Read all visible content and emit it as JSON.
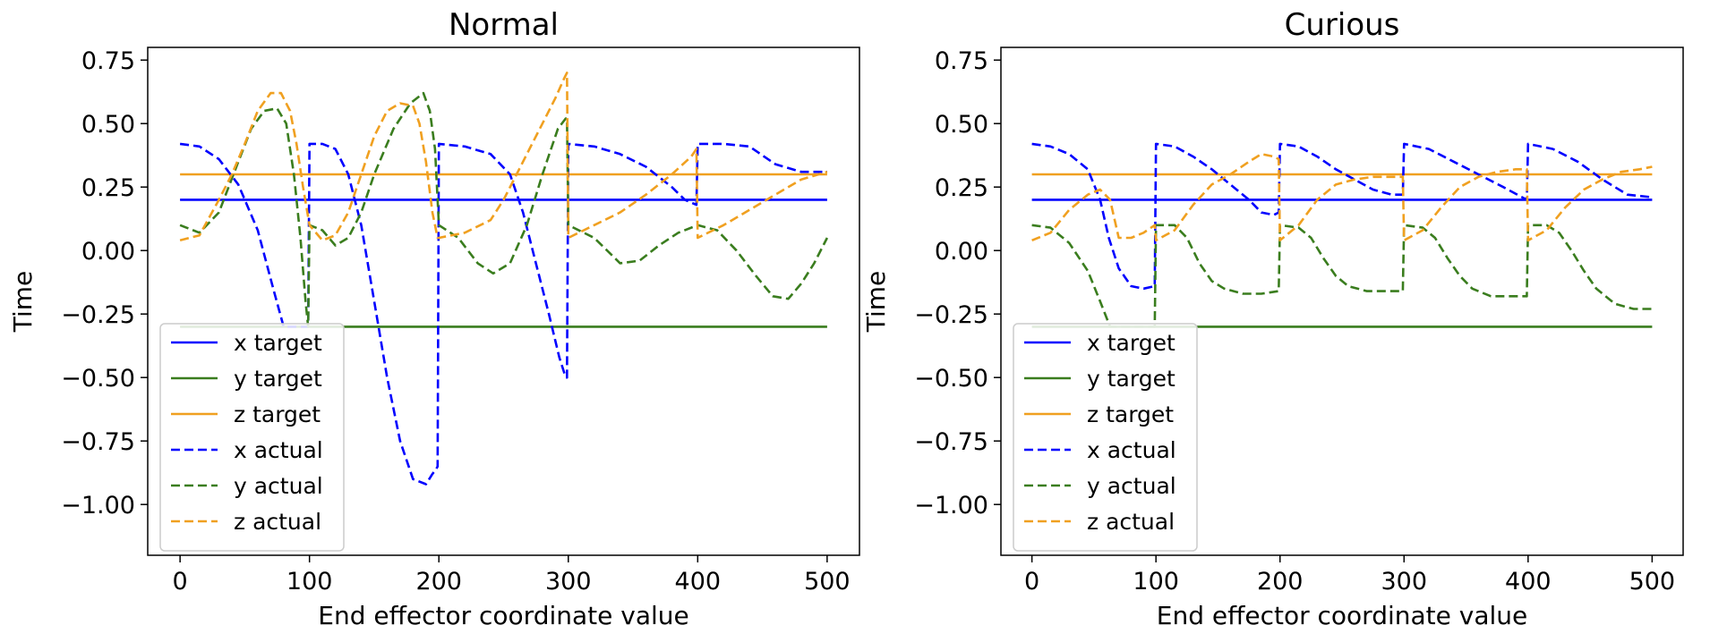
{
  "chart_data": [
    {
      "type": "line",
      "title": "Normal",
      "xlabel": "End effector coordinate value",
      "ylabel": "Time",
      "xlim": [
        -25,
        525
      ],
      "ylim": [
        -1.2,
        0.8
      ],
      "xticks": [
        0,
        100,
        200,
        300,
        400,
        500
      ],
      "xtick_labels": [
        "0",
        "100",
        "200",
        "300",
        "400",
        "500"
      ],
      "yticks": [
        0.75,
        0.5,
        0.25,
        0.0,
        -0.25,
        -0.5,
        -0.75,
        -1.0
      ],
      "ytick_labels": [
        "0.75",
        "0.50",
        "0.25",
        "0.00",
        "−0.25",
        "−0.50",
        "−0.75",
        "−1.00"
      ],
      "grid": false,
      "legend_position": "lower-left",
      "series": [
        {
          "name": "x target",
          "style": "solid",
          "color": "#0000ff",
          "x": [
            0,
            500
          ],
          "y": [
            0.2,
            0.2
          ]
        },
        {
          "name": "y target",
          "style": "solid",
          "color": "#3a7d1e",
          "x": [
            0,
            500
          ],
          "y": [
            -0.3,
            -0.3
          ]
        },
        {
          "name": "z target",
          "style": "solid",
          "color": "#f0a020",
          "x": [
            0,
            500
          ],
          "y": [
            0.3,
            0.3
          ]
        },
        {
          "name": "x actual",
          "style": "dashed",
          "color": "#0000ff",
          "x": [
            0,
            15,
            30,
            45,
            60,
            72,
            80,
            85,
            90,
            95,
            99,
            100,
            110,
            120,
            130,
            140,
            150,
            160,
            170,
            180,
            190,
            195,
            198,
            199,
            200,
            220,
            240,
            255,
            265,
            275,
            285,
            293,
            298,
            299,
            300,
            320,
            340,
            360,
            380,
            390,
            399,
            400,
            420,
            440,
            460,
            480,
            500
          ],
          "y": [
            0.42,
            0.41,
            0.36,
            0.26,
            0.08,
            -0.15,
            -0.3,
            -0.3,
            -0.3,
            -0.3,
            -0.3,
            0.42,
            0.42,
            0.4,
            0.3,
            0.1,
            -0.2,
            -0.5,
            -0.75,
            -0.9,
            -0.92,
            -0.88,
            -0.86,
            -0.85,
            0.42,
            0.41,
            0.38,
            0.3,
            0.15,
            -0.05,
            -0.25,
            -0.42,
            -0.5,
            -0.5,
            0.42,
            0.41,
            0.38,
            0.33,
            0.25,
            0.2,
            0.18,
            0.42,
            0.42,
            0.41,
            0.34,
            0.31,
            0.31
          ]
        },
        {
          "name": "y actual",
          "style": "dashed",
          "color": "#3a7d1e",
          "x": [
            0,
            15,
            30,
            45,
            55,
            65,
            75,
            82,
            88,
            93,
            97,
            99,
            100,
            110,
            120,
            130,
            140,
            150,
            165,
            178,
            188,
            193,
            197,
            199,
            200,
            215,
            230,
            242,
            255,
            268,
            280,
            292,
            298,
            299,
            300,
            320,
            340,
            355,
            370,
            385,
            400,
            415,
            430,
            445,
            458,
            470,
            480,
            490,
            500
          ],
          "y": [
            0.1,
            0.07,
            0.15,
            0.35,
            0.48,
            0.55,
            0.56,
            0.5,
            0.3,
            0.05,
            -0.2,
            -0.3,
            0.1,
            0.08,
            0.02,
            0.05,
            0.15,
            0.3,
            0.48,
            0.58,
            0.62,
            0.55,
            0.4,
            0.2,
            0.1,
            0.05,
            -0.05,
            -0.09,
            -0.05,
            0.1,
            0.3,
            0.48,
            0.52,
            0.52,
            0.1,
            0.05,
            -0.05,
            -0.04,
            0.02,
            0.07,
            0.1,
            0.08,
            0.0,
            -0.1,
            -0.18,
            -0.19,
            -0.13,
            -0.05,
            0.05
          ]
        },
        {
          "name": "z actual",
          "style": "dashed",
          "color": "#f0a020",
          "x": [
            0,
            15,
            30,
            40,
            50,
            60,
            70,
            78,
            85,
            90,
            95,
            100,
            110,
            120,
            130,
            140,
            150,
            160,
            170,
            180,
            185,
            190,
            195,
            199,
            200,
            220,
            240,
            250,
            260,
            270,
            280,
            290,
            297,
            299,
            300,
            320,
            340,
            360,
            380,
            395,
            399,
            400,
            420,
            440,
            460,
            480,
            500
          ],
          "y": [
            0.04,
            0.06,
            0.2,
            0.3,
            0.42,
            0.55,
            0.62,
            0.62,
            0.55,
            0.42,
            0.25,
            0.1,
            0.04,
            0.06,
            0.15,
            0.3,
            0.45,
            0.55,
            0.58,
            0.57,
            0.5,
            0.35,
            0.15,
            0.05,
            0.05,
            0.07,
            0.12,
            0.2,
            0.3,
            0.4,
            0.5,
            0.6,
            0.68,
            0.7,
            0.05,
            0.1,
            0.15,
            0.22,
            0.3,
            0.37,
            0.4,
            0.05,
            0.1,
            0.16,
            0.22,
            0.28,
            0.31
          ]
        }
      ]
    },
    {
      "type": "line",
      "title": "Curious",
      "xlabel": "End effector coordinate value",
      "ylabel": "Time",
      "xlim": [
        -25,
        525
      ],
      "ylim": [
        -1.2,
        0.8
      ],
      "xticks": [
        0,
        100,
        200,
        300,
        400,
        500
      ],
      "xtick_labels": [
        "0",
        "100",
        "200",
        "300",
        "400",
        "500"
      ],
      "yticks": [
        0.75,
        0.5,
        0.25,
        0.0,
        -0.25,
        -0.5,
        -0.75,
        -1.0
      ],
      "ytick_labels": [
        "0.75",
        "0.50",
        "0.25",
        "0.00",
        "−0.25",
        "−0.50",
        "−0.75",
        "−1.00"
      ],
      "grid": false,
      "legend_position": "lower-left",
      "series": [
        {
          "name": "x target",
          "style": "solid",
          "color": "#0000ff",
          "x": [
            0,
            500
          ],
          "y": [
            0.2,
            0.2
          ]
        },
        {
          "name": "y target",
          "style": "solid",
          "color": "#3a7d1e",
          "x": [
            0,
            500
          ],
          "y": [
            -0.3,
            -0.3
          ]
        },
        {
          "name": "z target",
          "style": "solid",
          "color": "#f0a020",
          "x": [
            0,
            500
          ],
          "y": [
            0.3,
            0.3
          ]
        },
        {
          "name": "x actual",
          "style": "dashed",
          "color": "#0000ff",
          "x": [
            0,
            15,
            30,
            45,
            55,
            62,
            70,
            80,
            90,
            99,
            100,
            115,
            130,
            145,
            160,
            175,
            185,
            195,
            199,
            200,
            215,
            230,
            245,
            260,
            275,
            290,
            299,
            300,
            320,
            340,
            360,
            380,
            399,
            400,
            420,
            440,
            460,
            480,
            500
          ],
          "y": [
            0.42,
            0.41,
            0.38,
            0.32,
            0.2,
            0.05,
            -0.07,
            -0.14,
            -0.15,
            -0.14,
            0.42,
            0.41,
            0.37,
            0.32,
            0.26,
            0.2,
            0.15,
            0.14,
            0.15,
            0.42,
            0.41,
            0.37,
            0.32,
            0.28,
            0.24,
            0.22,
            0.22,
            0.42,
            0.4,
            0.35,
            0.3,
            0.25,
            0.2,
            0.42,
            0.4,
            0.35,
            0.28,
            0.22,
            0.21
          ]
        },
        {
          "name": "y actual",
          "style": "dashed",
          "color": "#3a7d1e",
          "x": [
            0,
            15,
            30,
            45,
            55,
            63,
            70,
            75,
            99,
            100,
            115,
            125,
            135,
            145,
            155,
            170,
            185,
            199,
            200,
            215,
            225,
            235,
            245,
            255,
            270,
            285,
            299,
            300,
            315,
            325,
            335,
            345,
            355,
            370,
            385,
            399,
            400,
            415,
            425,
            435,
            445,
            455,
            470,
            485,
            500
          ],
          "y": [
            0.1,
            0.09,
            0.03,
            -0.08,
            -0.2,
            -0.3,
            -0.3,
            -0.3,
            -0.3,
            0.1,
            0.1,
            0.05,
            -0.05,
            -0.12,
            -0.15,
            -0.17,
            -0.17,
            -0.16,
            0.1,
            0.09,
            0.05,
            -0.03,
            -0.1,
            -0.14,
            -0.16,
            -0.16,
            -0.16,
            0.1,
            0.09,
            0.05,
            -0.03,
            -0.1,
            -0.15,
            -0.18,
            -0.18,
            -0.18,
            0.1,
            0.1,
            0.07,
            0.0,
            -0.08,
            -0.15,
            -0.21,
            -0.23,
            -0.23
          ]
        },
        {
          "name": "z actual",
          "style": "dashed",
          "color": "#f0a020",
          "x": [
            0,
            15,
            30,
            45,
            55,
            63,
            70,
            80,
            90,
            99,
            100,
            115,
            130,
            145,
            160,
            175,
            185,
            195,
            199,
            200,
            215,
            230,
            245,
            260,
            275,
            290,
            299,
            300,
            315,
            330,
            345,
            360,
            375,
            390,
            399,
            400,
            415,
            430,
            445,
            460,
            475,
            490,
            500
          ],
          "y": [
            0.04,
            0.07,
            0.16,
            0.22,
            0.24,
            0.2,
            0.05,
            0.05,
            0.07,
            0.1,
            0.04,
            0.08,
            0.18,
            0.26,
            0.3,
            0.35,
            0.38,
            0.37,
            0.36,
            0.04,
            0.1,
            0.2,
            0.26,
            0.28,
            0.29,
            0.29,
            0.29,
            0.04,
            0.08,
            0.17,
            0.25,
            0.29,
            0.31,
            0.32,
            0.32,
            0.04,
            0.08,
            0.17,
            0.24,
            0.28,
            0.31,
            0.32,
            0.33
          ]
        }
      ]
    }
  ]
}
